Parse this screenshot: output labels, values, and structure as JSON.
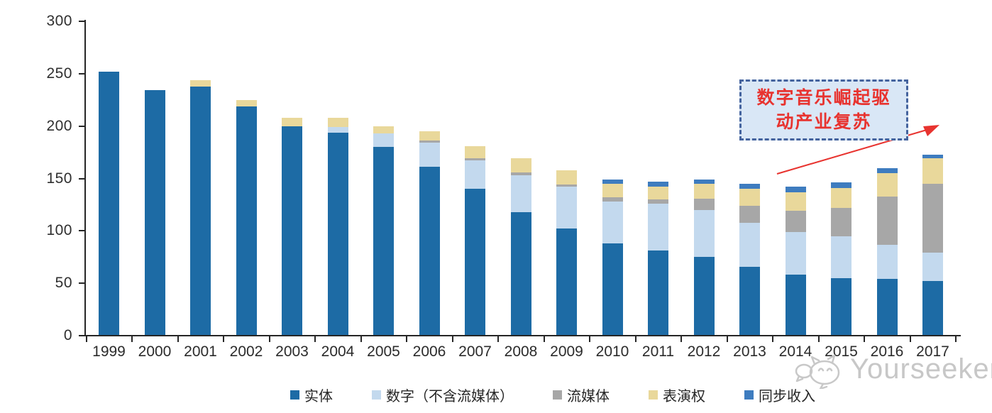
{
  "watermark": {
    "text": "Yourseeker",
    "icon": "yourseeker-cat-bubble-logo",
    "color": "#c7c7c7"
  },
  "annotation": {
    "text_line1": "数字音乐崛起驱",
    "text_line2": "动产业复苏",
    "text_color": "#e8332f",
    "border_color": "#44639e",
    "fill_color": "#d9e7f6",
    "arrow_color": "#e8332f"
  },
  "chart_data": {
    "type": "bar",
    "stacked": true,
    "title": "",
    "xlabel": "",
    "ylabel": "",
    "ylim": [
      0,
      300
    ],
    "y_ticks": [
      0,
      50,
      100,
      150,
      200,
      250,
      300
    ],
    "grid": false,
    "legend_position": "bottom",
    "categories": [
      "1999",
      "2000",
      "2001",
      "2002",
      "2003",
      "2004",
      "2005",
      "2006",
      "2007",
      "2008",
      "2009",
      "2010",
      "2011",
      "2012",
      "2013",
      "2014",
      "2015",
      "2016",
      "2017"
    ],
    "series": [
      {
        "key": "physical",
        "name": "实体",
        "color": "#1d6ba5",
        "values": [
          252,
          234,
          238,
          219,
          200,
          194,
          180,
          161,
          140,
          118,
          102,
          88,
          81,
          75,
          66,
          58,
          55,
          54,
          52
        ]
      },
      {
        "key": "digital-ex-streaming",
        "name": "数字（不含流媒体）",
        "color": "#c3d9ee",
        "values": [
          0,
          0,
          0,
          0,
          0,
          5,
          13,
          23,
          27,
          35,
          40,
          40,
          45,
          45,
          42,
          41,
          40,
          33,
          27
        ]
      },
      {
        "key": "streaming",
        "name": "流媒体",
        "color": "#a7a7a7",
        "values": [
          0,
          0,
          0,
          0,
          0,
          0,
          0,
          2,
          2,
          3,
          2,
          4,
          4,
          11,
          16,
          20,
          27,
          46,
          66
        ]
      },
      {
        "key": "performance-rights",
        "name": "表演权",
        "color": "#e9d89b",
        "values": [
          0,
          0,
          6,
          6,
          8,
          9,
          7,
          9,
          12,
          13,
          14,
          13,
          12,
          14,
          16,
          18,
          19,
          22,
          24
        ]
      },
      {
        "key": "sync-revenue",
        "name": "同步收入",
        "color": "#3e7cbf",
        "values": [
          0,
          0,
          0,
          0,
          0,
          0,
          0,
          0,
          0,
          0,
          0,
          4,
          5,
          4,
          5,
          5,
          5,
          5,
          4
        ]
      }
    ]
  }
}
